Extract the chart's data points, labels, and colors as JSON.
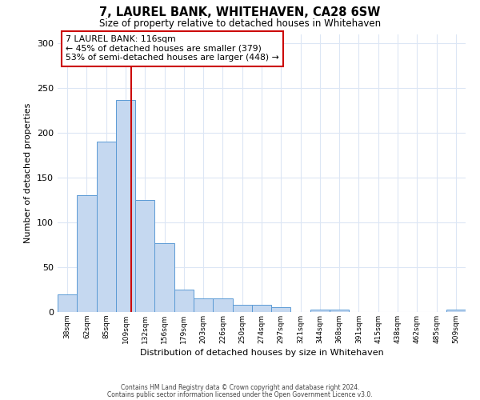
{
  "title": "7, LAUREL BANK, WHITEHAVEN, CA28 6SW",
  "subtitle": "Size of property relative to detached houses in Whitehaven",
  "xlabel": "Distribution of detached houses by size in Whitehaven",
  "ylabel": "Number of detached properties",
  "footnote1": "Contains HM Land Registry data © Crown copyright and database right 2024.",
  "footnote2": "Contains public sector information licensed under the Open Government Licence v3.0.",
  "bar_labels": [
    "38sqm",
    "62sqm",
    "85sqm",
    "109sqm",
    "132sqm",
    "156sqm",
    "179sqm",
    "203sqm",
    "226sqm",
    "250sqm",
    "274sqm",
    "297sqm",
    "321sqm",
    "344sqm",
    "368sqm",
    "391sqm",
    "415sqm",
    "438sqm",
    "462sqm",
    "485sqm",
    "509sqm"
  ],
  "bar_values": [
    20,
    130,
    190,
    236,
    125,
    77,
    25,
    15,
    15,
    8,
    8,
    5,
    0,
    3,
    3,
    0,
    0,
    0,
    0,
    0,
    3
  ],
  "bar_color": "#c5d8f0",
  "bar_edge_color": "#5b9bd5",
  "ylim": [
    0,
    310
  ],
  "yticks": [
    0,
    50,
    100,
    150,
    200,
    250,
    300
  ],
  "marker_label": "7 LAUREL BANK: 116sqm",
  "annotation_line1": "← 45% of detached houses are smaller (379)",
  "annotation_line2": "53% of semi-detached houses are larger (448) →",
  "vline_color": "#cc0000",
  "grid_color": "#dce6f5",
  "background_color": "#ffffff"
}
